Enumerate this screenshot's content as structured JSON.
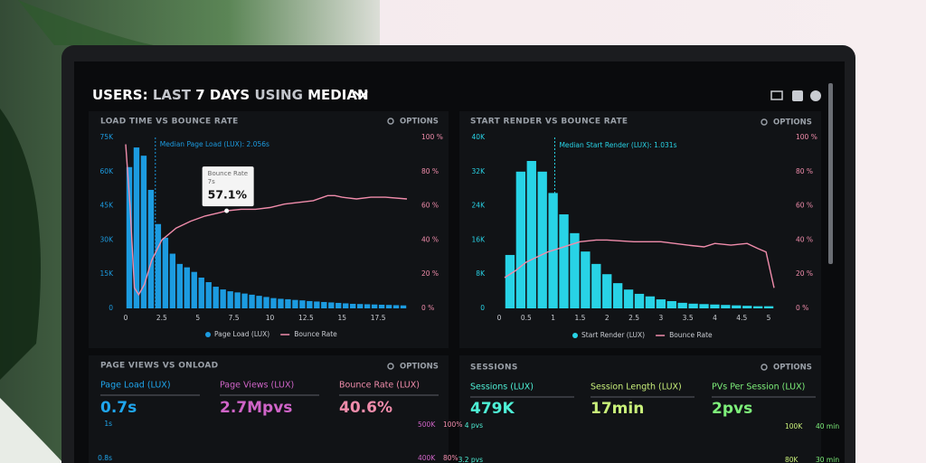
{
  "header": {
    "title_parts": [
      "USERS:",
      "LAST",
      "7 DAYS",
      "USING",
      "MEDIAN"
    ]
  },
  "options_label": "OPTIONS",
  "chart_data": [
    {
      "type": "histogram",
      "title": "LOAD TIME VS BOUNCE RATE",
      "bins": [
        0,
        0.5,
        1,
        1.5,
        2,
        2.5,
        3,
        3.5,
        4,
        4.5,
        5,
        5.5,
        6,
        6.5,
        7,
        7.5,
        8,
        8.5,
        9,
        9.5,
        10,
        10.5,
        11,
        11.5,
        12,
        12.5,
        13,
        13.5,
        14,
        14.5,
        15,
        15.5,
        16,
        16.5,
        17,
        17.5,
        18,
        18.5,
        19,
        19.5
      ],
      "xlim": [
        0,
        20
      ],
      "xticks": [
        0,
        2.5,
        5,
        7.5,
        10,
        12.5,
        15,
        17.5
      ],
      "ylim": [
        0,
        75000
      ],
      "yticks": [
        0,
        {
          "value": 15000,
          "label": "15K"
        },
        {
          "value": 30000,
          "label": "30K"
        },
        {
          "value": 45000,
          "label": "45K"
        },
        {
          "value": 60000,
          "label": "60K"
        },
        {
          "value": 75000,
          "label": "75K"
        }
      ],
      "y2lim": [
        0,
        100
      ],
      "y2ticks": [
        {
          "value": 0,
          "label": "0 %"
        },
        {
          "value": 20,
          "label": "20 %"
        },
        {
          "value": 40,
          "label": "40 %"
        },
        {
          "value": 60,
          "label": "60 %"
        },
        {
          "value": 80,
          "label": "80 %"
        },
        {
          "value": 100,
          "label": "100 %"
        }
      ],
      "series": [
        {
          "name": "Page Load (LUX)",
          "color": "#1c9be0",
          "values": [
            62000,
            70600,
            67000,
            52000,
            37000,
            31000,
            24000,
            19500,
            18000,
            16000,
            13500,
            11500,
            9500,
            8300,
            7500,
            7000,
            6500,
            6000,
            5500,
            5000,
            4500,
            4200,
            4000,
            3700,
            3500,
            3200,
            3000,
            2800,
            2600,
            2400,
            2200,
            2000,
            1900,
            1800,
            1700,
            1600,
            1500,
            1400,
            1300
          ]
        },
        {
          "name": "Bounce Rate",
          "color": "#f08cab",
          "axis": "y2",
          "x": [
            0,
            0.3,
            0.6,
            0.9,
            1.3,
            1.8,
            2.5,
            3.5,
            4.5,
            5.5,
            6.5,
            7,
            8,
            9,
            10,
            11,
            12,
            13,
            14,
            14.5,
            15,
            16,
            17,
            18,
            19.5
          ],
          "values": [
            96,
            60,
            12,
            8,
            14,
            28,
            40,
            47,
            51,
            54,
            56,
            57.1,
            58,
            58,
            59,
            61,
            62,
            63,
            66,
            66,
            65,
            64,
            65,
            65,
            64
          ]
        }
      ],
      "median": 2.056,
      "median_label": "Median Page Load (LUX): 2.056s",
      "tooltip": {
        "title": "Bounce Rate",
        "subtitle": "7s",
        "value_label": "57.1%",
        "x": 7,
        "value": 57.1
      }
    },
    {
      "type": "histogram",
      "title": "START RENDER VS BOUNCE RATE",
      "bins": [
        0.1,
        0.3,
        0.5,
        0.7,
        0.9,
        1.1,
        1.3,
        1.5,
        1.7,
        1.9,
        2.1,
        2.3,
        2.5,
        2.7,
        2.9,
        3.1,
        3.3,
        3.5,
        3.7,
        3.9,
        4.1,
        4.3,
        4.5,
        4.7,
        4.9,
        5.1
      ],
      "xlim": [
        0,
        5.2
      ],
      "xticks": [
        0,
        0.5,
        1,
        1.5,
        2,
        2.5,
        3,
        3.5,
        4,
        4.5,
        5
      ],
      "ylim": [
        0,
        40000
      ],
      "yticks": [
        0,
        {
          "value": 8000,
          "label": "8K"
        },
        {
          "value": 16000,
          "label": "16K"
        },
        {
          "value": 24000,
          "label": "24K"
        },
        {
          "value": 32000,
          "label": "32K"
        },
        {
          "value": 40000,
          "label": "40K"
        }
      ],
      "y2lim": [
        0,
        100
      ],
      "y2ticks": [
        {
          "value": 0,
          "label": "0 %"
        },
        {
          "value": 20,
          "label": "20 %"
        },
        {
          "value": 40,
          "label": "40 %"
        },
        {
          "value": 60,
          "label": "60 %"
        },
        {
          "value": 80,
          "label": "80 %"
        },
        {
          "value": 100,
          "label": "100 %"
        }
      ],
      "series": [
        {
          "name": "Start Render (LUX)",
          "color": "#28d3e6",
          "values": [
            12500,
            32000,
            34500,
            32000,
            27000,
            22000,
            17600,
            13300,
            10400,
            8000,
            5900,
            4400,
            3400,
            2800,
            2100,
            1700,
            1300,
            1100,
            1000,
            900,
            800,
            700,
            600,
            500,
            500
          ]
        },
        {
          "name": "Bounce Rate",
          "color": "#f08cab",
          "axis": "y2",
          "x": [
            0.1,
            0.3,
            0.5,
            0.7,
            0.9,
            1.1,
            1.3,
            1.5,
            1.8,
            2,
            2.5,
            3,
            3.5,
            3.8,
            4,
            4.3,
            4.6,
            4.8,
            4.95,
            5.1
          ],
          "values": [
            18,
            22,
            27,
            30,
            33,
            35,
            37,
            39,
            40,
            40,
            39,
            39,
            37,
            36,
            38,
            37,
            38,
            35,
            33,
            12
          ]
        }
      ],
      "median": 1.031,
      "median_label": "Median Start Render (LUX): 1.031s"
    }
  ],
  "panels": [
    {
      "title": "PAGE VIEWS VS ONLOAD",
      "metrics": [
        {
          "label": "Page Load (LUX)",
          "value": "0.7s"
        },
        {
          "label": "Page Views (LUX)",
          "value": "2.7Mpvs"
        },
        {
          "label": "Bounce Rate (LUX)",
          "value": "40.6%"
        }
      ],
      "axis_labels": [
        "1s",
        "0.8s",
        "500K",
        "100%",
        "400K",
        "80%"
      ]
    },
    {
      "title": "SESSIONS",
      "metrics": [
        {
          "label": "Sessions (LUX)",
          "value": "479K"
        },
        {
          "label": "Session Length (LUX)",
          "value": "17min"
        },
        {
          "label": "PVs Per Session (LUX)",
          "value": "2pvs"
        }
      ],
      "axis_labels": [
        "4 pvs",
        "3.2 pvs",
        "100K",
        "40 min",
        "80K",
        "30 min"
      ]
    }
  ]
}
